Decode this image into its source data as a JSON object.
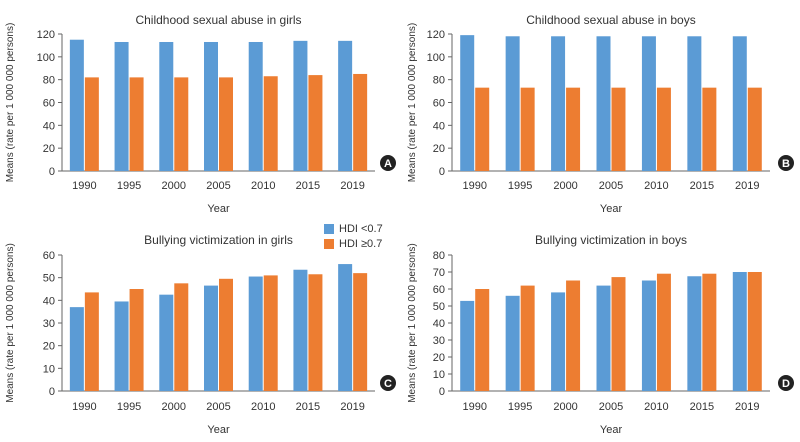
{
  "legend": {
    "low_label": "HDI <0.7",
    "high_label": "HDI ≥0.7",
    "low_color": "#5b9bd5",
    "high_color": "#ed7d31"
  },
  "chart_data": [
    {
      "type": "bar",
      "panel": "A",
      "title": "Childhood sexual abuse in girls",
      "xlabel": "Year",
      "ylabel": "Means (rate per 1 000 000 persons)",
      "categories": [
        "1990",
        "1995",
        "2000",
        "2005",
        "2010",
        "2015",
        "2019"
      ],
      "ylim": [
        0,
        120
      ],
      "yticks": [
        0,
        20,
        40,
        60,
        80,
        100,
        120
      ],
      "series": [
        {
          "name": "HDI <0.7",
          "values": [
            115,
            113,
            113,
            113,
            113,
            114,
            114
          ]
        },
        {
          "name": "HDI ≥0.7",
          "values": [
            82,
            82,
            82,
            82,
            83,
            84,
            85
          ]
        }
      ]
    },
    {
      "type": "bar",
      "panel": "B",
      "title": "Childhood sexual abuse in boys",
      "xlabel": "Year",
      "ylabel": "Means (rate per 1 000 000 persons)",
      "categories": [
        "1990",
        "1995",
        "2000",
        "2005",
        "2010",
        "2015",
        "2019"
      ],
      "ylim": [
        0,
        120
      ],
      "yticks": [
        0,
        20,
        40,
        60,
        80,
        100,
        120
      ],
      "series": [
        {
          "name": "HDI <0.7",
          "values": [
            119,
            118,
            118,
            118,
            118,
            118,
            118
          ]
        },
        {
          "name": "HDI ≥0.7",
          "values": [
            73,
            73,
            73,
            73,
            73,
            73,
            73
          ]
        }
      ]
    },
    {
      "type": "bar",
      "panel": "C",
      "title": "Bullying victimization in girls",
      "xlabel": "Year",
      "ylabel": "Means (rate per 1 000 000 persons)",
      "categories": [
        "1990",
        "1995",
        "2000",
        "2005",
        "2010",
        "2015",
        "2019"
      ],
      "ylim": [
        0,
        60
      ],
      "yticks": [
        0,
        10,
        20,
        30,
        40,
        50,
        60
      ],
      "series": [
        {
          "name": "HDI <0.7",
          "values": [
            37,
            39.5,
            42.5,
            46.5,
            50.5,
            53.5,
            56
          ]
        },
        {
          "name": "HDI ≥0.7",
          "values": [
            43.5,
            45,
            47.5,
            49.5,
            51,
            51.5,
            52
          ]
        }
      ]
    },
    {
      "type": "bar",
      "panel": "D",
      "title": "Bullying victimization in boys",
      "xlabel": "Year",
      "ylabel": "Means (rate per 1 000 000 persons)",
      "categories": [
        "1990",
        "1995",
        "2000",
        "2005",
        "2010",
        "2015",
        "2019"
      ],
      "ylim": [
        0,
        80
      ],
      "yticks": [
        0,
        10,
        20,
        30,
        40,
        50,
        60,
        70,
        80
      ],
      "series": [
        {
          "name": "HDI <0.7",
          "values": [
            53,
            56,
            58,
            62,
            65,
            67.5,
            70
          ]
        },
        {
          "name": "HDI ≥0.7",
          "values": [
            60,
            62,
            65,
            67,
            69,
            69,
            70
          ]
        }
      ]
    }
  ]
}
